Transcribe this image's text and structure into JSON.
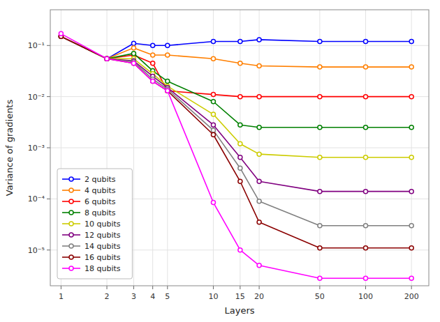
{
  "chart_data": {
    "type": "line",
    "x_label": "Layers",
    "y_label": "Variance of gradients",
    "x": [
      1,
      2,
      3,
      4,
      5,
      10,
      15,
      20,
      50,
      100,
      200
    ],
    "xlim": [
      0.85,
      260
    ],
    "xticks": [
      1,
      2,
      3,
      4,
      5,
      10,
      15,
      20,
      50,
      100,
      200
    ],
    "ylim": [
      2e-06,
      0.5
    ],
    "yticks": [
      {
        "value": 1e-05,
        "label": "10⁻⁵"
      },
      {
        "value": 0.0001,
        "label": "10⁻⁴"
      },
      {
        "value": 0.001,
        "label": "10⁻³"
      },
      {
        "value": 0.01,
        "label": "10⁻²"
      },
      {
        "value": 0.1,
        "label": "10⁻¹"
      }
    ],
    "log": true,
    "grid": true,
    "legend": "lower left",
    "marker": "circle",
    "series": [
      {
        "name": "2 qubits",
        "color": "#0000ff",
        "values": [
          0.15,
          0.055,
          0.11,
          0.1,
          0.1,
          0.12,
          0.12,
          0.13,
          0.12,
          0.12,
          0.12
        ]
      },
      {
        "name": "4 qubits",
        "color": "#ff7f00",
        "values": [
          0.15,
          0.055,
          0.09,
          0.065,
          0.065,
          0.055,
          0.045,
          0.04,
          0.038,
          0.038,
          0.038
        ]
      },
      {
        "name": "6 qubits",
        "color": "#ff0000",
        "values": [
          0.15,
          0.055,
          0.065,
          0.045,
          0.013,
          0.011,
          0.01,
          0.01,
          0.01,
          0.01,
          0.01
        ]
      },
      {
        "name": "8 qubits",
        "color": "#008000",
        "values": [
          0.15,
          0.055,
          0.07,
          0.032,
          0.02,
          0.008,
          0.0028,
          0.0025,
          0.0025,
          0.0025,
          0.0025
        ]
      },
      {
        "name": "10 qubits",
        "color": "#cccc00",
        "values": [
          0.15,
          0.055,
          0.055,
          0.028,
          0.016,
          0.0045,
          0.0012,
          0.00075,
          0.00065,
          0.00065,
          0.00065
        ]
      },
      {
        "name": "12 qubits",
        "color": "#800080",
        "values": [
          0.15,
          0.055,
          0.05,
          0.025,
          0.015,
          0.0028,
          0.00065,
          0.00022,
          0.00014,
          0.00014,
          0.00014
        ]
      },
      {
        "name": "14 qubits",
        "color": "#808080",
        "values": [
          0.15,
          0.055,
          0.048,
          0.022,
          0.014,
          0.0022,
          0.0004,
          9e-05,
          3e-05,
          3e-05,
          3e-05
        ]
      },
      {
        "name": "16 qubits",
        "color": "#8B0000",
        "values": [
          0.15,
          0.055,
          0.045,
          0.02,
          0.013,
          0.0018,
          0.00022,
          3.5e-05,
          1.1e-05,
          1.1e-05,
          1.1e-05
        ]
      },
      {
        "name": "18 qubits",
        "color": "#ff00ff",
        "values": [
          0.17,
          0.055,
          0.045,
          0.02,
          0.013,
          8.5e-05,
          1e-05,
          5e-06,
          2.8e-06,
          2.8e-06,
          2.8e-06
        ]
      }
    ]
  }
}
